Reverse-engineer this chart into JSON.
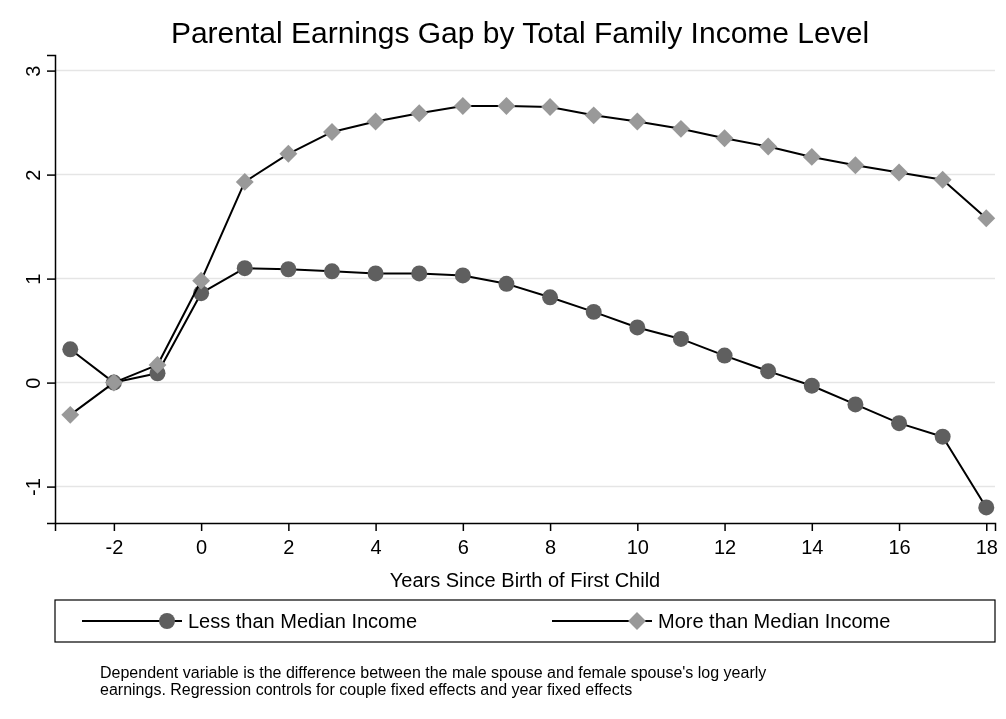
{
  "chart_data": {
    "type": "line",
    "title": "Parental Earnings Gap by Total Family Income Level",
    "xlabel": "Years Since Birth of First Child",
    "x": [
      -3,
      -2,
      -1,
      0,
      1,
      2,
      3,
      4,
      5,
      6,
      7,
      8,
      9,
      10,
      11,
      12,
      13,
      14,
      15,
      16,
      17,
      18
    ],
    "series": [
      {
        "name": "Less than Median Income",
        "color": "#5f5f5f",
        "marker": "circle",
        "values": [
          0.32,
          0,
          0.09,
          0.86,
          1.1,
          1.09,
          1.07,
          1.05,
          1.05,
          1.03,
          0.95,
          0.82,
          0.68,
          0.53,
          0.42,
          0.26,
          0.11,
          -0.03,
          -0.21,
          -0.39,
          -0.52,
          -1.2
        ]
      },
      {
        "name": "More than Median Income",
        "color": "#999999",
        "marker": "diamond",
        "values": [
          -0.31,
          0,
          0.17,
          0.98,
          1.93,
          2.2,
          2.41,
          2.51,
          2.59,
          2.66,
          2.66,
          2.65,
          2.57,
          2.51,
          2.44,
          2.35,
          2.27,
          2.17,
          2.09,
          2.02,
          1.95,
          1.58
        ]
      }
    ],
    "xlim": [
      -3.35,
      18.2
    ],
    "xticks": [
      -2,
      0,
      2,
      4,
      6,
      8,
      10,
      12,
      14,
      16,
      18
    ],
    "ylim": [
      -1.35,
      3.15
    ],
    "yticks": [
      -1,
      0,
      1,
      2,
      3
    ],
    "grid": "y",
    "legend": "bottom",
    "line_style": "solid",
    "annotations": [
      "Dependent variable is the difference between the male spouse and female spouse's log yearly earnings. Regression controls for couple fixed effects and year fixed effects"
    ]
  }
}
